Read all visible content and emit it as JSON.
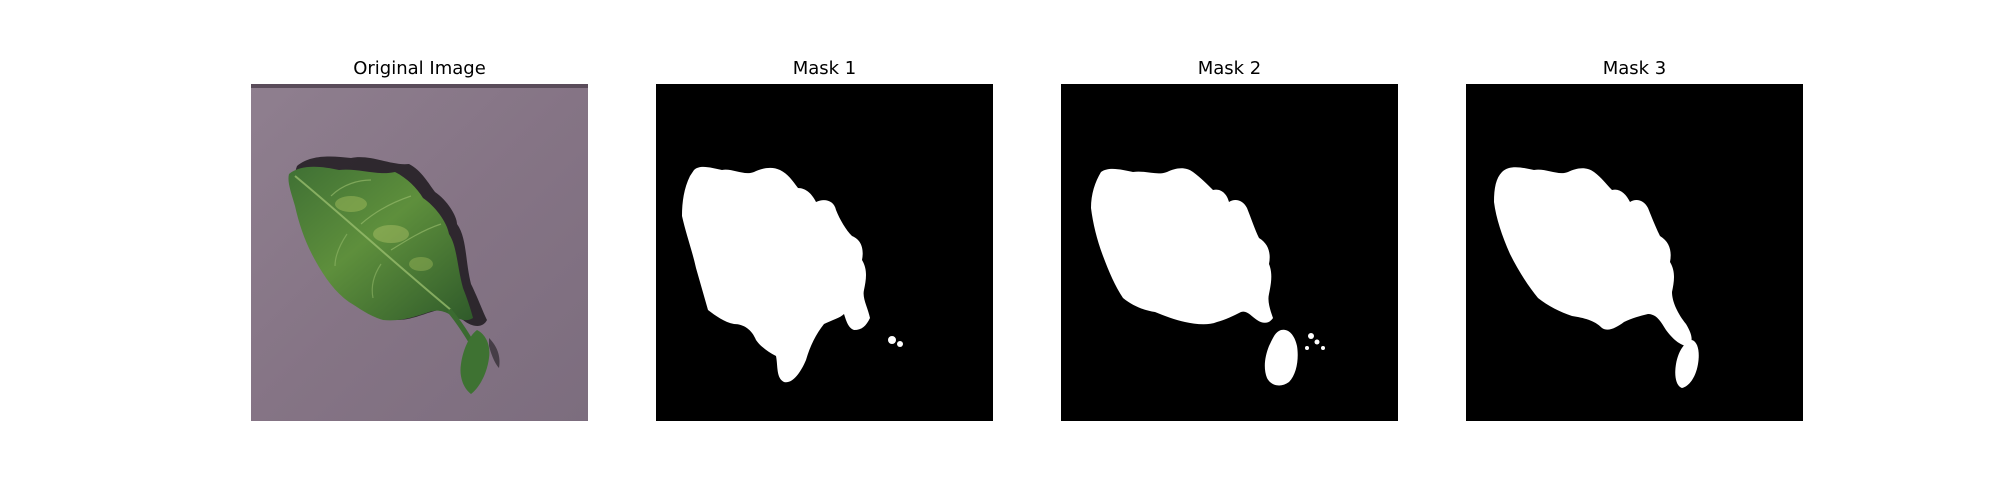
{
  "figure": {
    "panels": [
      {
        "title": "Original Image",
        "kind": "photo",
        "content": "tomato-leaf"
      },
      {
        "title": "Mask 1",
        "kind": "mask"
      },
      {
        "title": "Mask 2",
        "kind": "mask"
      },
      {
        "title": "Mask 3",
        "kind": "mask"
      }
    ]
  },
  "colors": {
    "background": "#ffffff",
    "mask_background": "#000000",
    "mask_foreground": "#ffffff",
    "photo_background": "#8a7a88",
    "leaf_dark": "#2f5a2a",
    "leaf_light": "#7aa64a"
  }
}
